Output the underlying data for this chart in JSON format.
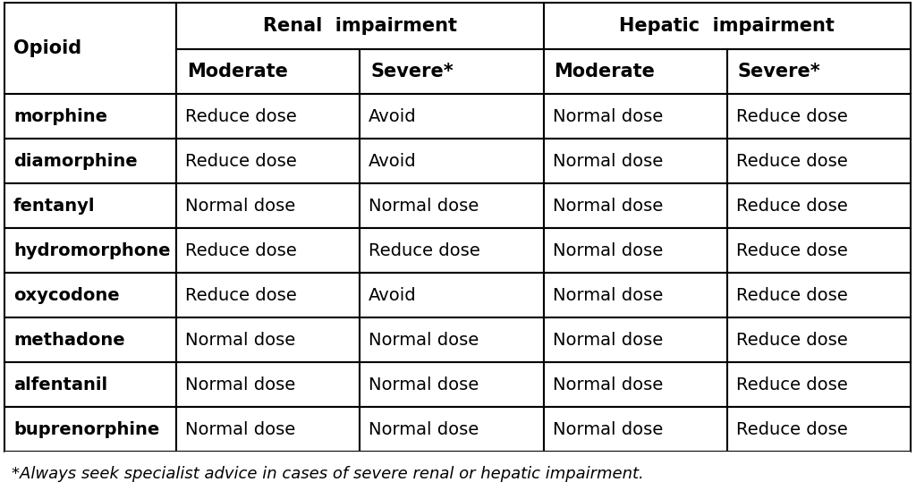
{
  "footnote": "*Always seek specialist advice in cases of severe renal or hepatic impairment.",
  "col_header_row1": [
    "Opioid",
    "Renal  impairment",
    "Hepatic  impairment"
  ],
  "col_header_row2": [
    "Moderate",
    "Severe*",
    "Moderate",
    "Severe*"
  ],
  "rows": [
    [
      "morphine",
      "Reduce dose",
      "Avoid",
      "Normal dose",
      "Reduce dose"
    ],
    [
      "diamorphine",
      "Reduce dose",
      "Avoid",
      "Normal dose",
      "Reduce dose"
    ],
    [
      "fentanyl",
      "Normal dose",
      "Normal dose",
      "Normal dose",
      "Reduce dose"
    ],
    [
      "hydromorphone",
      "Reduce dose",
      "Reduce dose",
      "Normal dose",
      "Reduce dose"
    ],
    [
      "oxycodone",
      "Reduce dose",
      "Avoid",
      "Normal dose",
      "Reduce dose"
    ],
    [
      "methadone",
      "Normal dose",
      "Normal dose",
      "Normal dose",
      "Reduce dose"
    ],
    [
      "alfentanil",
      "Normal dose",
      "Normal dose",
      "Normal dose",
      "Reduce dose"
    ],
    [
      "buprenorphine",
      "Normal dose",
      "Normal dose",
      "Normal dose",
      "Reduce dose"
    ]
  ],
  "background_color": "#ffffff",
  "border_color": "#000000",
  "text_color": "#000000",
  "header_fontsize": 15,
  "cell_fontsize": 14,
  "footnote_fontsize": 13
}
